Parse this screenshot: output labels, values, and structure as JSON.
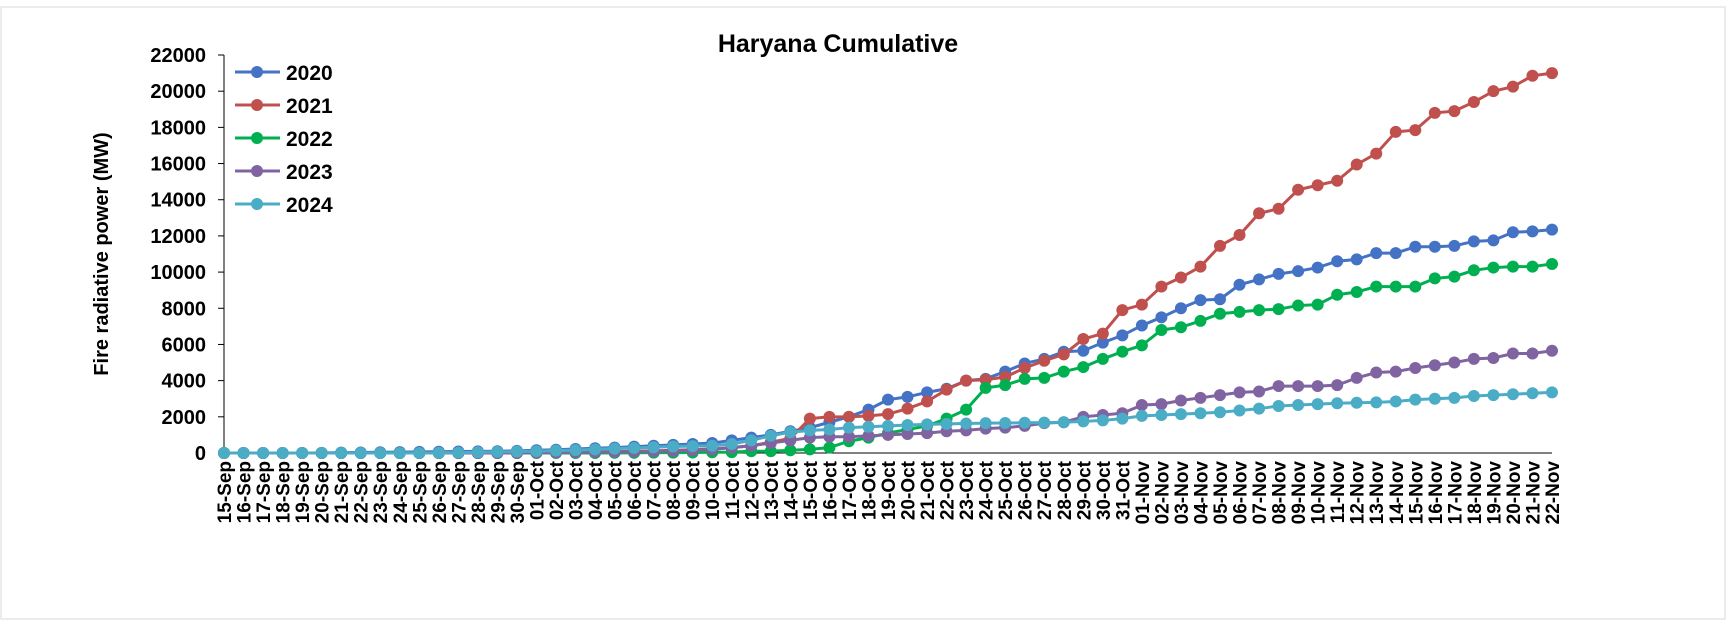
{
  "chart_data": {
    "type": "line",
    "title": "Haryana Cumulative",
    "y_label": "Fire radiative power (MW)",
    "categories": [
      "15-Sep",
      "16-Sep",
      "17-Sep",
      "18-Sep",
      "19-Sep",
      "20-Sep",
      "21-Sep",
      "22-Sep",
      "23-Sep",
      "24-Sep",
      "25-Sep",
      "26-Sep",
      "27-Sep",
      "28-Sep",
      "29-Sep",
      "30-Sep",
      "01-Oct",
      "02-Oct",
      "03-Oct",
      "04-Oct",
      "05-Oct",
      "06-Oct",
      "07-Oct",
      "08-Oct",
      "09-Oct",
      "10-Oct",
      "11-Oct",
      "12-Oct",
      "13-Oct",
      "14-Oct",
      "15-Oct",
      "16-Oct",
      "17-Oct",
      "18-Oct",
      "19-Oct",
      "20-Oct",
      "21-Oct",
      "22-Oct",
      "23-Oct",
      "24-Oct",
      "25-Oct",
      "26-Oct",
      "27-Oct",
      "28-Oct",
      "29-Oct",
      "30-Oct",
      "31-Oct",
      "01-Nov",
      "02-Nov",
      "03-Nov",
      "04-Nov",
      "05-Nov",
      "06-Nov",
      "07-Nov",
      "08-Nov",
      "09-Nov",
      "10-Nov",
      "11-Nov",
      "12-Nov",
      "13-Nov",
      "14-Nov",
      "15-Nov",
      "16-Nov",
      "17-Nov",
      "18-Nov",
      "19-Nov",
      "20-Nov",
      "21-Nov",
      "22-Nov"
    ],
    "series": [
      {
        "name": "2020",
        "color": "#4472c4",
        "values": [
          0,
          0,
          0,
          0,
          0,
          10,
          20,
          30,
          40,
          50,
          60,
          70,
          80,
          90,
          100,
          120,
          150,
          180,
          220,
          260,
          300,
          350,
          400,
          450,
          500,
          550,
          700,
          850,
          1000,
          1200,
          1400,
          1700,
          2000,
          2400,
          2950,
          3100,
          3350,
          3550,
          4000,
          4100,
          4500,
          4950,
          5200,
          5600,
          5650,
          6100,
          6500,
          7050,
          7500,
          8000,
          8450,
          8500,
          9300,
          9600,
          9900,
          10050,
          10250,
          10600,
          10700,
          11050,
          11050,
          11400,
          11400,
          11450,
          11700,
          11750,
          12200,
          12250,
          12350
        ]
      },
      {
        "name": "2021",
        "color": "#c0504d",
        "values": [
          0,
          0,
          0,
          0,
          0,
          0,
          0,
          0,
          0,
          0,
          0,
          0,
          0,
          0,
          0,
          0,
          20,
          30,
          40,
          60,
          80,
          100,
          120,
          150,
          180,
          220,
          300,
          400,
          600,
          800,
          1900,
          2000,
          2000,
          2050,
          2150,
          2450,
          2850,
          3500,
          4000,
          4050,
          4200,
          4700,
          5100,
          5450,
          6300,
          6600,
          7900,
          8200,
          9200,
          9700,
          10300,
          11450,
          12050,
          13250,
          13500,
          14550,
          14800,
          15050,
          15950,
          16550,
          17750,
          17850,
          18800,
          18900,
          19400,
          20000,
          20250,
          20850,
          21000
        ]
      },
      {
        "name": "2022",
        "color": "#00b050",
        "values": [
          0,
          0,
          0,
          0,
          0,
          0,
          0,
          0,
          0,
          0,
          0,
          0,
          0,
          0,
          0,
          0,
          0,
          0,
          0,
          0,
          10,
          10,
          20,
          20,
          30,
          40,
          50,
          100,
          100,
          150,
          200,
          300,
          650,
          850,
          1100,
          1300,
          1500,
          1900,
          2400,
          3600,
          3750,
          4100,
          4150,
          4500,
          4750,
          5200,
          5600,
          5950,
          6800,
          6950,
          7300,
          7700,
          7800,
          7900,
          7950,
          8150,
          8200,
          8750,
          8900,
          9200,
          9200,
          9200,
          9650,
          9750,
          10100,
          10250,
          10300,
          10300,
          10450
        ]
      },
      {
        "name": "2023",
        "color": "#8064a2",
        "values": [
          0,
          0,
          0,
          0,
          0,
          0,
          0,
          0,
          0,
          0,
          0,
          0,
          0,
          0,
          0,
          10,
          20,
          30,
          40,
          50,
          60,
          80,
          100,
          120,
          150,
          200,
          300,
          400,
          550,
          700,
          850,
          900,
          900,
          950,
          1000,
          1050,
          1100,
          1200,
          1250,
          1350,
          1400,
          1500,
          1650,
          1700,
          2000,
          2100,
          2200,
          2650,
          2700,
          2900,
          3050,
          3200,
          3350,
          3400,
          3700,
          3700,
          3700,
          3750,
          4150,
          4450,
          4500,
          4700,
          4850,
          5000,
          5200,
          5250,
          5500,
          5500,
          5650
        ]
      },
      {
        "name": "2024",
        "color": "#4bacc6",
        "values": [
          0,
          0,
          0,
          0,
          0,
          0,
          0,
          0,
          0,
          0,
          0,
          10,
          20,
          40,
          60,
          80,
          100,
          130,
          160,
          200,
          240,
          280,
          320,
          360,
          380,
          400,
          500,
          700,
          950,
          1150,
          1250,
          1300,
          1400,
          1450,
          1500,
          1550,
          1580,
          1610,
          1630,
          1650,
          1660,
          1670,
          1680,
          1700,
          1750,
          1800,
          1900,
          2050,
          2100,
          2150,
          2200,
          2250,
          2350,
          2450,
          2600,
          2650,
          2700,
          2750,
          2780,
          2800,
          2850,
          2950,
          3000,
          3050,
          3150,
          3200,
          3250,
          3300,
          3350
        ]
      }
    ],
    "ylim": [
      0,
      22000
    ],
    "yticks": [
      0,
      2000,
      4000,
      6000,
      8000,
      10000,
      12000,
      14000,
      16000,
      18000,
      20000,
      22000
    ]
  }
}
